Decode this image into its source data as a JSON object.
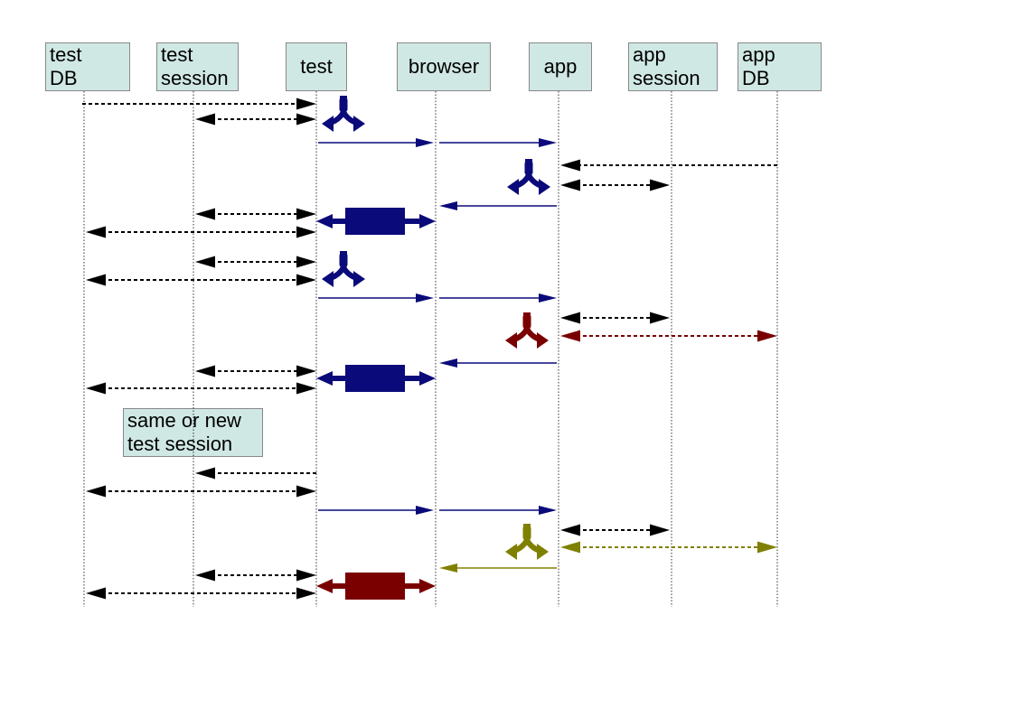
{
  "lifelines": [
    {
      "id": "test_db",
      "lines": [
        "test",
        "DB"
      ]
    },
    {
      "id": "test_session",
      "lines": [
        "test",
        "session"
      ]
    },
    {
      "id": "test",
      "lines": [
        "test"
      ]
    },
    {
      "id": "browser",
      "lines": [
        "browser"
      ]
    },
    {
      "id": "app",
      "lines": [
        "app"
      ]
    },
    {
      "id": "app_session",
      "lines": [
        "app",
        "session"
      ]
    },
    {
      "id": "app_db",
      "lines": [
        "app",
        "DB"
      ]
    }
  ],
  "note": {
    "lines": [
      "same or new",
      "test session"
    ]
  },
  "colors": {
    "navy": "#0a0a7a",
    "dark_red": "#7a0000",
    "olive": "#808000",
    "black": "#000000",
    "box_fill": "#d0e8e4"
  },
  "icons": {
    "fork": "three-way-arrow-icon",
    "bidirectional_block": "double-arrow-block-icon"
  }
}
